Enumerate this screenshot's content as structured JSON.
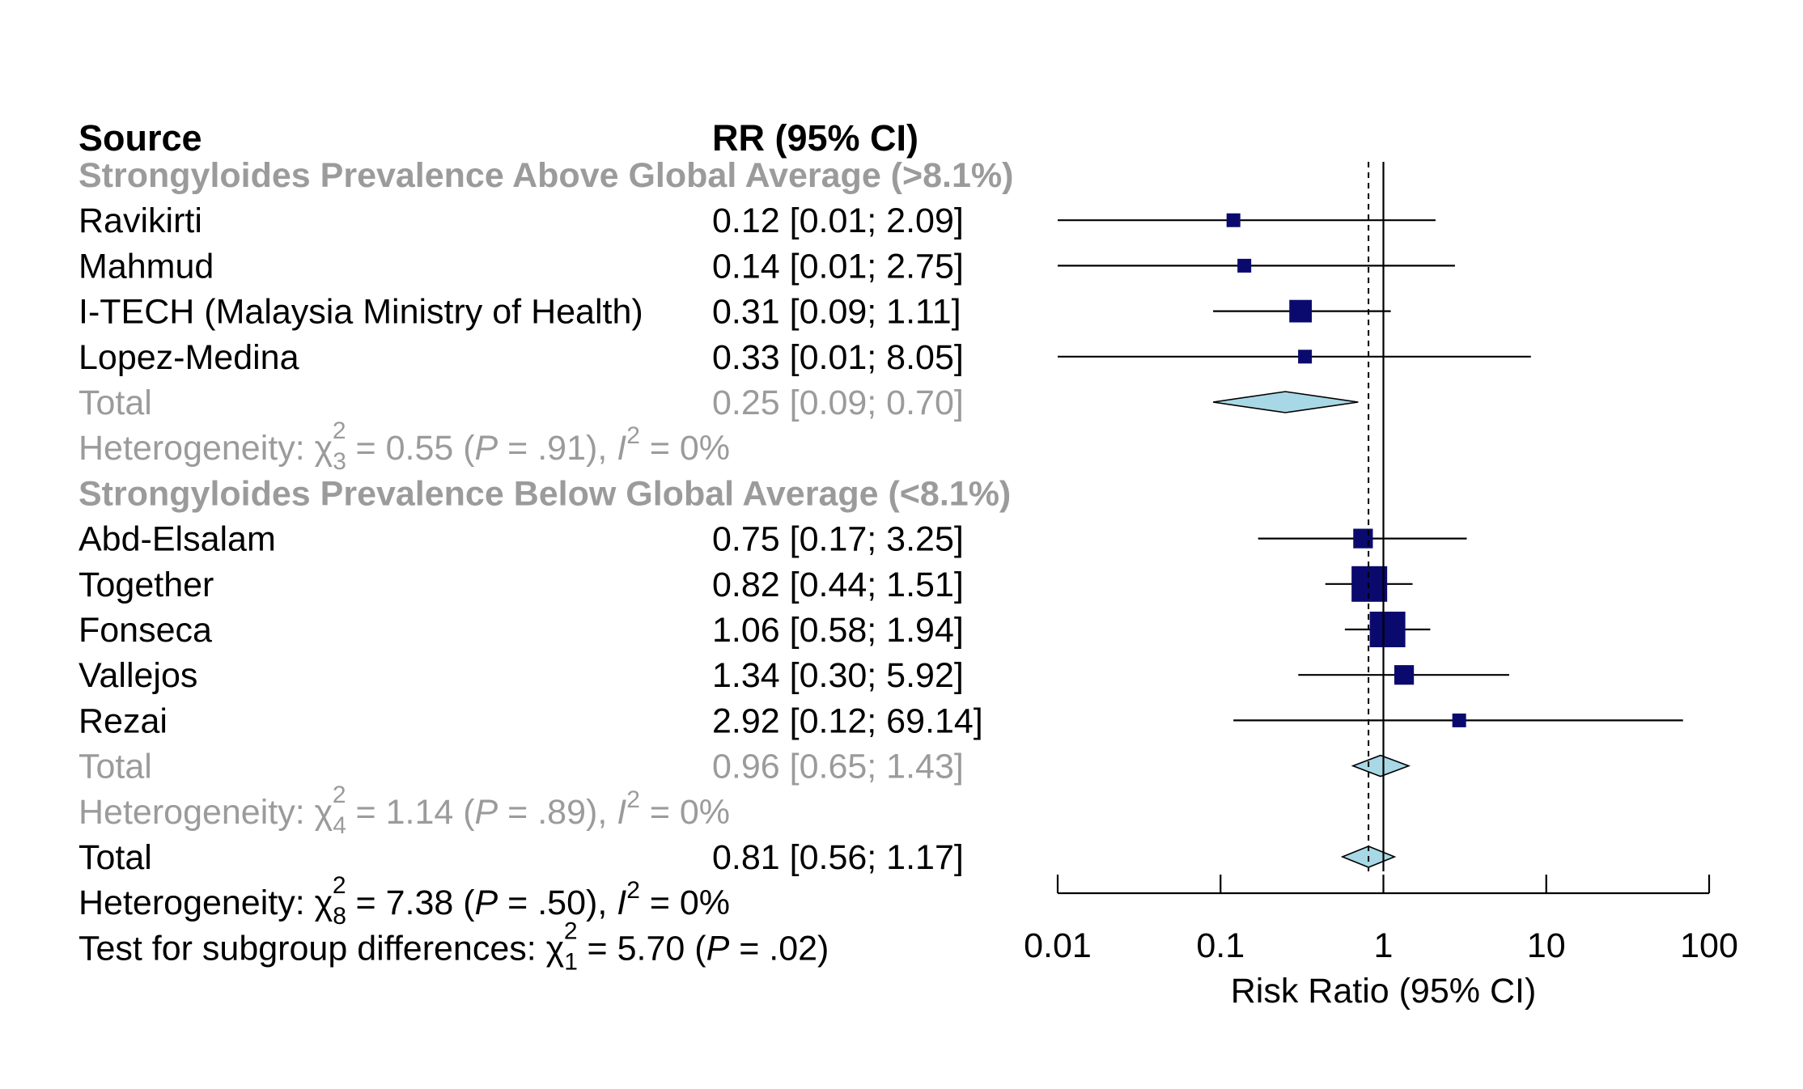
{
  "headers": {
    "source": "Source",
    "effect": "RR (95% CI)"
  },
  "colors": {
    "text": "#000000",
    "subgroup_text": "#9b9b9b",
    "study_marker": "#0a0a6e",
    "diamond_fill": "#a8d8e6",
    "diamond_stroke": "#000000",
    "line": "#000000"
  },
  "chart_data": {
    "type": "forest",
    "xscale": "log",
    "xlim": [
      0.01,
      100
    ],
    "xticks": [
      0.01,
      0.1,
      1,
      10,
      100
    ],
    "xtick_labels": [
      "0.01",
      "0.1",
      "1",
      "10",
      "100"
    ],
    "xlabel": "Risk Ratio (95% CI)",
    "null_line": 1,
    "pooled_line": 0.81,
    "rows": [
      {
        "kind": "group",
        "label": "Strongyloides Prevalence Above Global Average (>8.1%)"
      },
      {
        "kind": "study",
        "label": "Ravikirti",
        "rr": 0.12,
        "lo": 0.01,
        "hi": 2.09,
        "ci_text": "0.12 [0.01;  2.09]",
        "weight_size": 0.25
      },
      {
        "kind": "study",
        "label": "Mahmud",
        "rr": 0.14,
        "lo": 0.01,
        "hi": 2.75,
        "ci_text": "0.14 [0.01;  2.75]",
        "weight_size": 0.25
      },
      {
        "kind": "study",
        "label": "I-TECH (Malaysia Ministry of Health)",
        "rr": 0.31,
        "lo": 0.09,
        "hi": 1.11,
        "ci_text": "0.31 [0.09;  1.11]",
        "weight_size": 0.55
      },
      {
        "kind": "study",
        "label": "Lopez-Medina",
        "rr": 0.33,
        "lo": 0.01,
        "hi": 8.05,
        "ci_text": "0.33 [0.01;  8.05]",
        "weight_size": 0.25
      },
      {
        "kind": "subtotal",
        "label": "Total",
        "rr": 0.25,
        "lo": 0.09,
        "hi": 0.7,
        "ci_text": "0.25 [0.09;  0.70]"
      },
      {
        "kind": "het",
        "parts": [
          "Heterogeneity: ",
          "χ",
          "3",
          "2",
          " = 0.55 (",
          "P",
          " = .91), ",
          "I",
          "2",
          " = 0%"
        ]
      },
      {
        "kind": "group",
        "label": "Strongyloides Prevalence Below Global Average (<8.1%)"
      },
      {
        "kind": "study",
        "label": "Abd-Elsalam",
        "rr": 0.75,
        "lo": 0.17,
        "hi": 3.25,
        "ci_text": "0.75 [0.17;  3.25]",
        "weight_size": 0.45
      },
      {
        "kind": "study",
        "label": "Together",
        "rr": 0.82,
        "lo": 0.44,
        "hi": 1.51,
        "ci_text": "0.82 [0.44;  1.51]",
        "weight_size": 1.0
      },
      {
        "kind": "study",
        "label": "Fonseca",
        "rr": 1.06,
        "lo": 0.58,
        "hi": 1.94,
        "ci_text": "1.06 [0.58;  1.94]",
        "weight_size": 1.0
      },
      {
        "kind": "study",
        "label": "Vallejos",
        "rr": 1.34,
        "lo": 0.3,
        "hi": 5.92,
        "ci_text": "1.34 [0.30;  5.92]",
        "weight_size": 0.45
      },
      {
        "kind": "study",
        "label": "Rezai",
        "rr": 2.92,
        "lo": 0.12,
        "hi": 69.14,
        "ci_text": "2.92 [0.12; 69.14]",
        "weight_size": 0.25
      },
      {
        "kind": "subtotal",
        "label": "Total",
        "rr": 0.96,
        "lo": 0.65,
        "hi": 1.43,
        "ci_text": "0.96 [0.65;  1.43]"
      },
      {
        "kind": "het",
        "parts": [
          "Heterogeneity: ",
          "χ",
          "4",
          "2",
          " = 1.14 (",
          "P",
          " = .89), ",
          "I",
          "2",
          " = 0%"
        ]
      },
      {
        "kind": "total",
        "label": "Total",
        "rr": 0.81,
        "lo": 0.56,
        "hi": 1.17,
        "ci_text": "0.81 [0.56;  1.17]"
      },
      {
        "kind": "het_total",
        "parts": [
          "Heterogeneity: ",
          "χ",
          "8",
          "2",
          " = 7.38 (",
          "P",
          " = .50), ",
          "I",
          "2",
          " = 0%"
        ]
      },
      {
        "kind": "subgroup_test",
        "parts": [
          "Test for subgroup differences: ",
          "χ",
          "1",
          "2",
          " = 5.70 (",
          "P",
          " = .02)"
        ]
      }
    ]
  }
}
